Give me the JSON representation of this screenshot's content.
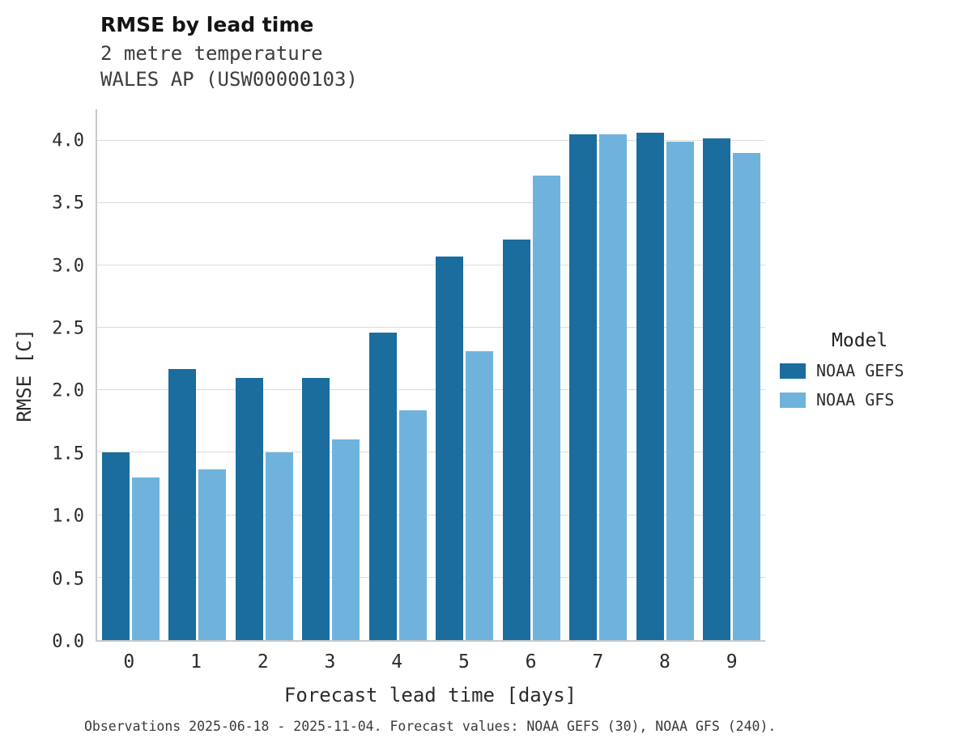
{
  "chart_data": {
    "type": "bar",
    "title": "RMSE by lead time",
    "subtitle": [
      "2 metre temperature",
      "WALES AP (USW00000103)"
    ],
    "categories": [
      "0",
      "1",
      "2",
      "3",
      "4",
      "5",
      "6",
      "7",
      "8",
      "9"
    ],
    "series": [
      {
        "name": "NOAA GEFS",
        "color": "#1b6d9e",
        "values": [
          1.5,
          2.17,
          2.1,
          2.1,
          2.46,
          3.07,
          3.21,
          4.05,
          4.06,
          4.02
        ]
      },
      {
        "name": "NOAA GFS",
        "color": "#6fb3dd",
        "values": [
          1.3,
          1.37,
          1.5,
          1.61,
          1.84,
          2.31,
          3.72,
          4.05,
          3.99,
          3.9
        ]
      }
    ],
    "xlabel": "Forecast lead time [days]",
    "ylabel": "RMSE [C]",
    "ylim": [
      0,
      4.25
    ],
    "yticks": [
      0.0,
      0.5,
      1.0,
      1.5,
      2.0,
      2.5,
      3.0,
      3.5,
      4.0
    ],
    "grid": "horizontal",
    "legend": {
      "title": "Model",
      "position": "right"
    }
  },
  "caption": "Observations 2025-06-18 - 2025-11-04. Forecast values: NOAA GEFS (30), NOAA GFS (240)."
}
